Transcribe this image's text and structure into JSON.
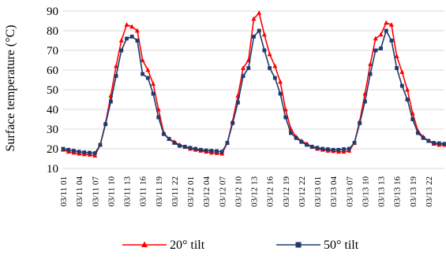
{
  "chart_data": {
    "type": "line",
    "title": "",
    "xlabel": "",
    "ylabel": "Surface temperature (°C)",
    "ylim": [
      10,
      90
    ],
    "yticks": [
      10,
      20,
      30,
      40,
      50,
      60,
      70,
      80,
      90
    ],
    "grid": "horizontal",
    "legend_position": "bottom",
    "x_tick_labels": [
      "03/11 01",
      "03/11 04",
      "03/11 07",
      "03/11 10",
      "03/11 13",
      "03/11 16",
      "03/11 19",
      "03/11 22",
      "03/12 01",
      "03/12 04",
      "03/12 07",
      "03/12 10",
      "03/12 13",
      "03/12 16",
      "03/12 19",
      "03/12 22",
      "03/13 01",
      "03/13 04",
      "03/13 07",
      "03/13 10",
      "03/13 13",
      "03/13 16",
      "03/13 19",
      "03/13 22"
    ],
    "x_tick_start_index": 0,
    "x_tick_step": 3,
    "series": [
      {
        "name": "20° tilt",
        "color": "#ff0000",
        "marker": "triangle",
        "values": [
          19.5,
          18.5,
          18.0,
          17.5,
          17.2,
          17.0,
          16.5,
          22.0,
          33.0,
          47.0,
          62.0,
          75.0,
          83.0,
          82.0,
          80.0,
          65.0,
          60.0,
          53.0,
          40.0,
          28.0,
          25.0,
          23.5,
          22.0,
          21.0,
          20.0,
          19.5,
          19.0,
          18.5,
          18.0,
          17.8,
          17.5,
          23.0,
          34.0,
          47.0,
          61.0,
          65.0,
          86.0,
          89.0,
          78.0,
          68.0,
          62.0,
          54.0,
          40.0,
          30.0,
          26.0,
          24.0,
          22.5,
          21.0,
          20.0,
          19.5,
          19.0,
          18.8,
          18.5,
          18.5,
          19.0,
          23.0,
          34.0,
          48.0,
          63.0,
          76.0,
          78.0,
          84.0,
          83.0,
          67.0,
          59.0,
          50.0,
          38.0,
          29.0,
          26.0,
          24.0,
          22.5,
          22.0,
          22.0
        ]
      },
      {
        "name": "50° tilt",
        "color": "#1f3a6e",
        "marker": "square",
        "values": [
          20.0,
          19.5,
          19.0,
          18.5,
          18.2,
          18.0,
          17.8,
          22.0,
          32.5,
          44.0,
          57.0,
          70.0,
          76.0,
          77.0,
          75.0,
          58.0,
          56.0,
          48.0,
          36.0,
          27.5,
          25.0,
          23.0,
          21.5,
          21.0,
          20.5,
          20.0,
          19.5,
          19.2,
          19.0,
          18.8,
          18.5,
          23.0,
          33.0,
          43.5,
          57.0,
          61.0,
          77.0,
          80.0,
          70.0,
          61.0,
          56.0,
          48.0,
          36.0,
          28.0,
          25.5,
          23.5,
          22.0,
          21.0,
          20.5,
          20.0,
          19.8,
          19.5,
          19.5,
          19.8,
          20.0,
          23.0,
          33.0,
          44.0,
          58.0,
          70.0,
          71.0,
          80.0,
          75.0,
          61.0,
          52.0,
          45.0,
          35.0,
          28.0,
          25.5,
          24.0,
          23.0,
          22.8,
          22.5
        ]
      }
    ]
  }
}
